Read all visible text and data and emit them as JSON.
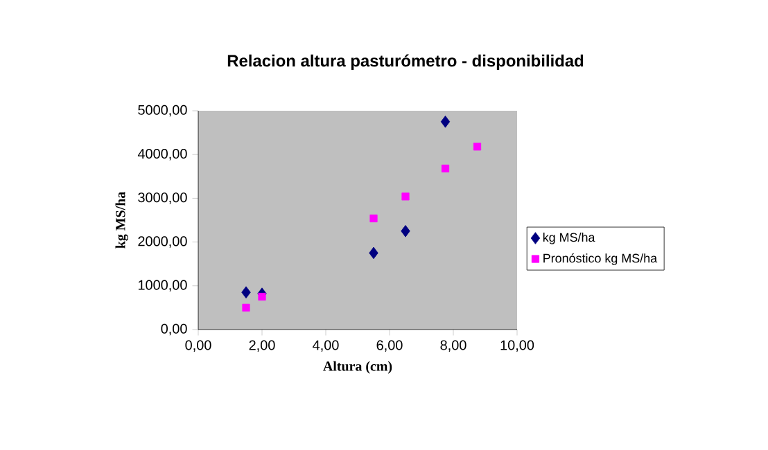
{
  "chart_data": {
    "type": "scatter",
    "title": "Relacion altura pasturómetro - disponibilidad",
    "xlabel": "Altura (cm)",
    "ylabel": "kg MS/ha",
    "xlim": [
      0,
      10
    ],
    "ylim": [
      0,
      5000
    ],
    "xticks": [
      {
        "value": 0,
        "label": "0,00"
      },
      {
        "value": 2,
        "label": "2,00"
      },
      {
        "value": 4,
        "label": "4,00"
      },
      {
        "value": 6,
        "label": "6,00"
      },
      {
        "value": 8,
        "label": "8,00"
      },
      {
        "value": 10,
        "label": "10,00"
      }
    ],
    "yticks": [
      {
        "value": 0,
        "label": "0,00"
      },
      {
        "value": 1000,
        "label": "1000,00"
      },
      {
        "value": 2000,
        "label": "2000,00"
      },
      {
        "value": 3000,
        "label": "3000,00"
      },
      {
        "value": 4000,
        "label": "4000,00"
      },
      {
        "value": 5000,
        "label": "5000,00"
      }
    ],
    "legend": "right",
    "grid": false,
    "series": [
      {
        "name": "kg MS/ha",
        "color": "#000080",
        "marker": "diamond",
        "x": [
          1.5,
          2.0,
          5.5,
          6.5,
          7.75
        ],
        "values": [
          850,
          820,
          1750,
          2250,
          4750
        ]
      },
      {
        "name": "Pronóstico kg MS/ha",
        "color": "#ff00ff",
        "marker": "square",
        "x": [
          1.5,
          2.0,
          5.5,
          6.5,
          7.75,
          8.75
        ],
        "values": [
          500,
          750,
          2540,
          3040,
          3680,
          4180
        ]
      }
    ]
  }
}
